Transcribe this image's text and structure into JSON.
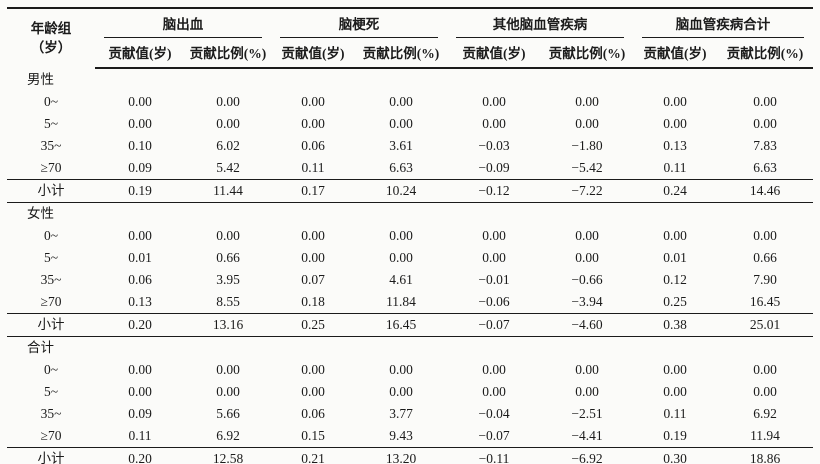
{
  "colors": {
    "ink": "#1b1b1b",
    "background": "#fbfbf9"
  },
  "table": {
    "age_header": {
      "line1": "年龄组",
      "line2": "（岁）"
    },
    "groups": [
      {
        "label": "脑出血",
        "sub": [
          "贡献值(岁)",
          "贡献比例(%)"
        ]
      },
      {
        "label": "脑梗死",
        "sub": [
          "贡献值(岁)",
          "贡献比例(%)"
        ]
      },
      {
        "label": "其他脑血管疾病",
        "sub": [
          "贡献值(岁)",
          "贡献比例(%)"
        ]
      },
      {
        "label": "脑血管疾病合计",
        "sub": [
          "贡献值(岁)",
          "贡献比例(%)"
        ]
      }
    ],
    "sections": [
      {
        "label": "男性",
        "rows": [
          {
            "age": "0~",
            "values": [
              "0.00",
              "0.00",
              "0.00",
              "0.00",
              "0.00",
              "0.00",
              "0.00",
              "0.00"
            ]
          },
          {
            "age": "5~",
            "values": [
              "0.00",
              "0.00",
              "0.00",
              "0.00",
              "0.00",
              "0.00",
              "0.00",
              "0.00"
            ]
          },
          {
            "age": "35~",
            "values": [
              "0.10",
              "6.02",
              "0.06",
              "3.61",
              "−0.03",
              "−1.80",
              "0.13",
              "7.83"
            ]
          },
          {
            "age": "≥70",
            "values": [
              "0.09",
              "5.42",
              "0.11",
              "6.63",
              "−0.09",
              "−5.42",
              "0.11",
              "6.63"
            ]
          }
        ],
        "subtotal": {
          "age": "小计",
          "values": [
            "0.19",
            "11.44",
            "0.17",
            "10.24",
            "−0.12",
            "−7.22",
            "0.24",
            "14.46"
          ]
        }
      },
      {
        "label": "女性",
        "rows": [
          {
            "age": "0~",
            "values": [
              "0.00",
              "0.00",
              "0.00",
              "0.00",
              "0.00",
              "0.00",
              "0.00",
              "0.00"
            ]
          },
          {
            "age": "5~",
            "values": [
              "0.01",
              "0.66",
              "0.00",
              "0.00",
              "0.00",
              "0.00",
              "0.01",
              "0.66"
            ]
          },
          {
            "age": "35~",
            "values": [
              "0.06",
              "3.95",
              "0.07",
              "4.61",
              "−0.01",
              "−0.66",
              "0.12",
              "7.90"
            ]
          },
          {
            "age": "≥70",
            "values": [
              "0.13",
              "8.55",
              "0.18",
              "11.84",
              "−0.06",
              "−3.94",
              "0.25",
              "16.45"
            ]
          }
        ],
        "subtotal": {
          "age": "小计",
          "values": [
            "0.20",
            "13.16",
            "0.25",
            "16.45",
            "−0.07",
            "−4.60",
            "0.38",
            "25.01"
          ]
        }
      },
      {
        "label": "合计",
        "rows": [
          {
            "age": "0~",
            "values": [
              "0.00",
              "0.00",
              "0.00",
              "0.00",
              "0.00",
              "0.00",
              "0.00",
              "0.00"
            ]
          },
          {
            "age": "5~",
            "values": [
              "0.00",
              "0.00",
              "0.00",
              "0.00",
              "0.00",
              "0.00",
              "0.00",
              "0.00"
            ]
          },
          {
            "age": "35~",
            "values": [
              "0.09",
              "5.66",
              "0.06",
              "3.77",
              "−0.04",
              "−2.51",
              "0.11",
              "6.92"
            ]
          },
          {
            "age": "≥70",
            "values": [
              "0.11",
              "6.92",
              "0.15",
              "9.43",
              "−0.07",
              "−4.41",
              "0.19",
              "11.94"
            ]
          }
        ],
        "subtotal": {
          "age": "小计",
          "values": [
            "0.20",
            "12.58",
            "0.21",
            "13.20",
            "−0.11",
            "−6.92",
            "0.30",
            "18.86"
          ]
        }
      }
    ]
  }
}
